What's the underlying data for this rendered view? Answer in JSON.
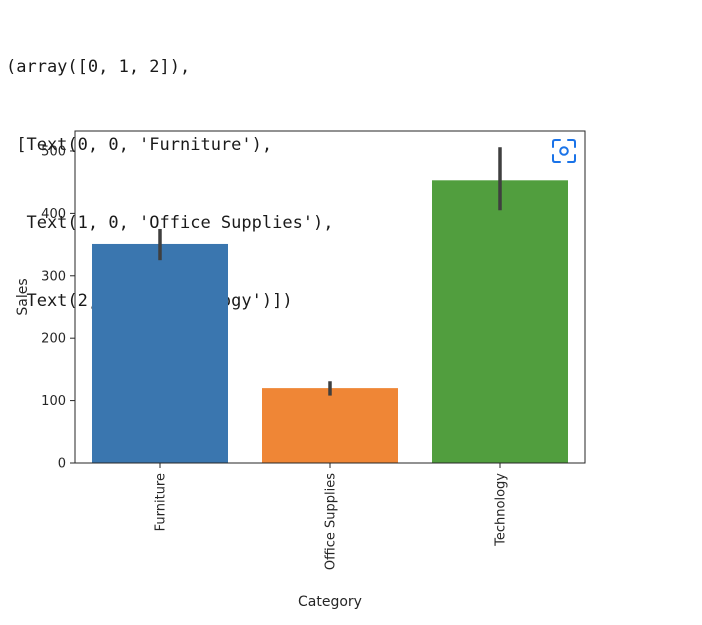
{
  "output_lines": [
    "(array([0, 1, 2]),",
    " [Text(0, 0, 'Furniture'),",
    "  Text(1, 0, 'Office Supplies'),",
    "  Text(2, 0, 'Technology')])"
  ],
  "chart_data": {
    "type": "bar",
    "categories": [
      "Furniture",
      "Office Supplies",
      "Technology"
    ],
    "values": [
      351,
      120,
      453
    ],
    "error_bars": [
      [
        325,
        375
      ],
      [
        108,
        131
      ],
      [
        405,
        506
      ]
    ],
    "colors": [
      "#3a76af",
      "#ef8636",
      "#519e3e"
    ],
    "error_color": "#3f3f3f",
    "xlabel": "Category",
    "ylabel": "Sales",
    "ylim": [
      0,
      532
    ],
    "yticks": [
      0,
      100,
      200,
      300,
      400,
      500
    ],
    "grid": false
  },
  "icons": {
    "screenshot_icon": "camera-viewfinder-icon",
    "icon_color": "#1a73e8"
  }
}
